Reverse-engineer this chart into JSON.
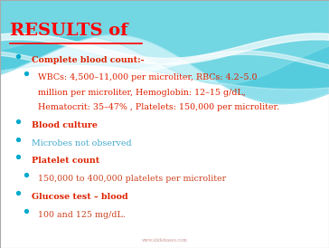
{
  "title": "RESULTS of",
  "title_color": "#ff0000",
  "background_color": "#ffffff",
  "watermark": "www.slidebases.com",
  "bullet_dot_color": "#00aacc",
  "wave_color1": "#55ccdd",
  "wave_color2": "#88dde8",
  "wave_color3": "#aaeef8",
  "wave_color4": "#c8f2fa",
  "bullets": [
    {
      "text": "Complete blood count:-",
      "bold": true,
      "color": "#dd2200",
      "sub": false
    },
    {
      "text": "WBCs: 4,500–11,000 per microliter, RBCs: 4.2–5.0\nmillion per microliter, Hemoglobin: 12–15 g/dL,\nHematocrit: 35–47% , Platelets: 150,000 per microliter.",
      "bold": false,
      "color": "#dd2200",
      "sub": true
    },
    {
      "text": "Blood culture",
      "bold": true,
      "color": "#dd2200",
      "sub": false
    },
    {
      "text": "Microbes not observed",
      "bold": false,
      "color": "#44aacc",
      "sub": false
    },
    {
      "text": "Platelet count",
      "bold": true,
      "color": "#dd2200",
      "sub": false
    },
    {
      "text": "150,000 to 400,000 platelets per microliter",
      "bold": false,
      "color": "#cc4422",
      "sub": true
    },
    {
      "text": "Glucose test – blood",
      "bold": true,
      "color": "#dd2200",
      "sub": false
    },
    {
      "text": "100 and 125 mg/dL.",
      "bold": false,
      "color": "#cc4422",
      "sub": true
    }
  ],
  "title_fontsize": 14,
  "body_fontsize": 6.8,
  "figw": 3.64,
  "figh": 2.74
}
